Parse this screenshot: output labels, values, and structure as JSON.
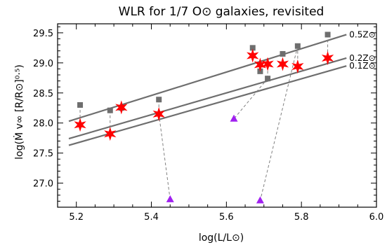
{
  "chart_data": {
    "type": "scatter",
    "title": "WLR for 1/7 O⊙ galaxies, revisited",
    "xlabel": "log(L/L⊙)",
    "ylabel": "log(Ṁ v∞ [R/R⊙]⁰·⁵)",
    "xlim": [
      5.15,
      6.0
    ],
    "ylim": [
      26.6,
      29.65
    ],
    "xticks": [
      "5.2",
      "5.4",
      "5.6",
      "5.8",
      "6.0"
    ],
    "xtick_values": [
      5.2,
      5.4,
      5.6,
      5.8,
      6.0
    ],
    "yticks": [
      "27.0",
      "27.5",
      "28.0",
      "28.5",
      "29.0",
      "29.5"
    ],
    "ytick_values": [
      27.0,
      27.5,
      28.0,
      28.5,
      29.0,
      29.5
    ],
    "grid": false,
    "colors": {
      "stars": "#ff0000",
      "squares": "#6e6e6e",
      "triangles": "#a020f0",
      "lines": "#6e6e6e",
      "connectors": "#808080"
    },
    "fit_lines": [
      {
        "label": "0.5Z⊙",
        "x": [
          5.18,
          5.92
        ],
        "y": [
          28.03,
          29.47
        ]
      },
      {
        "label": "0.2Z⊙",
        "x": [
          5.18,
          5.92
        ],
        "y": [
          27.74,
          29.08
        ]
      },
      {
        "label": "0.1Z⊙",
        "x": [
          5.18,
          5.92
        ],
        "y": [
          27.63,
          28.95
        ]
      }
    ],
    "stars": [
      {
        "x": 5.21,
        "y": 27.97
      },
      {
        "x": 5.29,
        "y": 27.82
      },
      {
        "x": 5.32,
        "y": 28.26
      },
      {
        "x": 5.42,
        "y": 28.15
      },
      {
        "x": 5.67,
        "y": 29.12
      },
      {
        "x": 5.69,
        "y": 28.97
      },
      {
        "x": 5.71,
        "y": 28.98
      },
      {
        "x": 5.75,
        "y": 28.98
      },
      {
        "x": 5.79,
        "y": 28.94
      },
      {
        "x": 5.87,
        "y": 29.08
      }
    ],
    "squares": [
      {
        "x": 5.21,
        "y": 28.3
      },
      {
        "x": 5.29,
        "y": 28.21
      },
      {
        "x": 5.32,
        "y": 28.25
      },
      {
        "x": 5.42,
        "y": 28.39
      },
      {
        "x": 5.67,
        "y": 29.25
      },
      {
        "x": 5.69,
        "y": 28.86
      },
      {
        "x": 5.71,
        "y": 28.74
      },
      {
        "x": 5.75,
        "y": 29.15
      },
      {
        "x": 5.79,
        "y": 29.28
      },
      {
        "x": 5.87,
        "y": 29.47
      }
    ],
    "triangles": [
      {
        "x": 5.45,
        "y": 26.73
      },
      {
        "x": 5.62,
        "y": 28.07
      },
      {
        "x": 5.69,
        "y": 26.71
      }
    ],
    "connectors": [
      {
        "x1": 5.21,
        "y1": 28.3,
        "x2": 5.21,
        "y2": 27.97
      },
      {
        "x1": 5.29,
        "y1": 28.21,
        "x2": 5.29,
        "y2": 27.82
      },
      {
        "x1": 5.32,
        "y1": 28.25,
        "x2": 5.32,
        "y2": 28.26
      },
      {
        "x1": 5.42,
        "y1": 28.39,
        "x2": 5.42,
        "y2": 28.15
      },
      {
        "x1": 5.42,
        "y1": 28.15,
        "x2": 5.45,
        "y2": 26.73
      },
      {
        "x1": 5.67,
        "y1": 29.25,
        "x2": 5.67,
        "y2": 29.12
      },
      {
        "x1": 5.69,
        "y1": 28.97,
        "x2": 5.69,
        "y2": 28.86
      },
      {
        "x1": 5.71,
        "y1": 28.74,
        "x2": 5.71,
        "y2": 28.98
      },
      {
        "x1": 5.71,
        "y1": 28.74,
        "x2": 5.62,
        "y2": 28.07
      },
      {
        "x1": 5.75,
        "y1": 29.15,
        "x2": 5.75,
        "y2": 28.98
      },
      {
        "x1": 5.79,
        "y1": 29.28,
        "x2": 5.79,
        "y2": 28.94
      },
      {
        "x1": 5.79,
        "y1": 29.28,
        "x2": 5.69,
        "y2": 26.71
      },
      {
        "x1": 5.87,
        "y1": 29.47,
        "x2": 5.87,
        "y2": 29.08
      }
    ]
  }
}
